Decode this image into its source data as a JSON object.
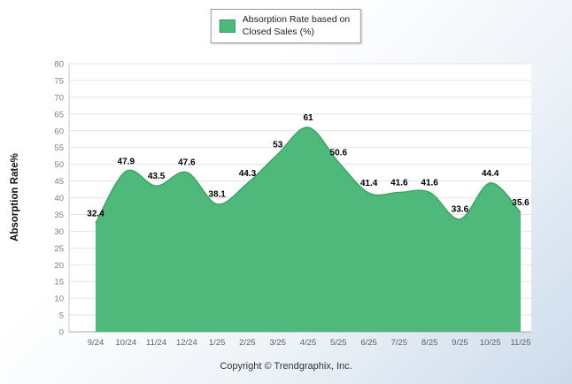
{
  "chart_data": {
    "type": "area",
    "categories": [
      "9/24",
      "10/24",
      "11/24",
      "12/24",
      "1/25",
      "2/25",
      "3/25",
      "4/25",
      "5/25",
      "6/25",
      "7/25",
      "8/25",
      "9/25",
      "10/25",
      "11/25"
    ],
    "values": [
      32.4,
      47.9,
      43.5,
      47.6,
      38.1,
      44.3,
      53,
      61,
      50.6,
      41.4,
      41.6,
      41.6,
      33.6,
      44.4,
      35.6
    ],
    "ylabel": "Absorption Rate%",
    "xlabel": "",
    "ylim": [
      0,
      80
    ],
    "ytick_step": 5,
    "grid": "horizontal",
    "legend_position": "top-center",
    "legend": {
      "label": "Absorption Rate based on Closed Sales (%)",
      "line1": "Absorption Rate based on",
      "line2": "Closed Sales (%)"
    }
  },
  "colors": {
    "area_fill": "#4eb97b",
    "area_stroke": "#3aa565",
    "grid": "#e4e4e4",
    "axis": "#a9a9a9",
    "y_tick_text": "#7d7d7d",
    "x_tick_text": "#5f5f5f",
    "data_label": "#000000"
  },
  "footer": {
    "copyright": "Copyright © Trendgraphix, Inc."
  }
}
